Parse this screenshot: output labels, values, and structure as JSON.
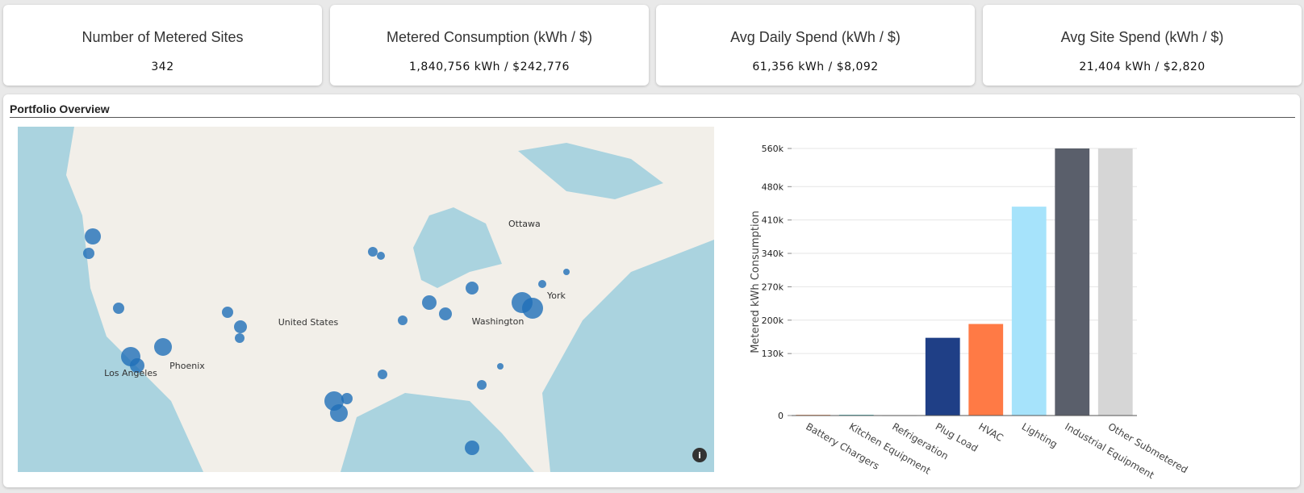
{
  "kpis": [
    {
      "title": "Number of Metered Sites",
      "value": "342"
    },
    {
      "title": "Metered Consumption (kWh / $)",
      "value": "1,840,756 kWh / $242,776"
    },
    {
      "title": "Avg Daily Spend (kWh / $)",
      "value": "61,356 kWh / $8,092"
    },
    {
      "title": "Avg Site Spend (kWh / $)",
      "value": "21,404 kWh / $2,820"
    }
  ],
  "panel": {
    "title": "Portfolio Overview"
  },
  "map": {
    "labels": [
      "Ottawa",
      "York",
      "Washington",
      "United States",
      "Phoenix",
      "Los Angeles"
    ]
  },
  "chart_data": {
    "type": "bar",
    "y_label": "Metered kWh Consumption",
    "categories": [
      "Battery Chargers",
      "Kitchen Equipment",
      "Refrigeration",
      "Plug Load",
      "HVAC",
      "Lighting",
      "Industrial Equipment",
      "Other Submetered"
    ],
    "values": [
      1500,
      1500,
      800,
      163000,
      192000,
      438000,
      560000,
      560000
    ],
    "colors": [
      "#f08a4b",
      "#2bb3b1",
      "#333333",
      "#1f3f86",
      "#ff7a45",
      "#a6e3fb",
      "#5a5f6b",
      "#d6d6d6"
    ],
    "ylim": [
      0,
      560000
    ],
    "yticks": [
      0,
      {
        "value": 130000,
        "label": "130k"
      },
      {
        "value": 200000,
        "label": "200k"
      },
      {
        "value": 270000,
        "label": "270k"
      },
      {
        "value": 340000,
        "label": "340k"
      },
      {
        "value": 410000,
        "label": "410k"
      },
      {
        "value": 480000,
        "label": "480k"
      },
      {
        "value": 560000,
        "label": "560k"
      }
    ],
    "grid": true
  }
}
